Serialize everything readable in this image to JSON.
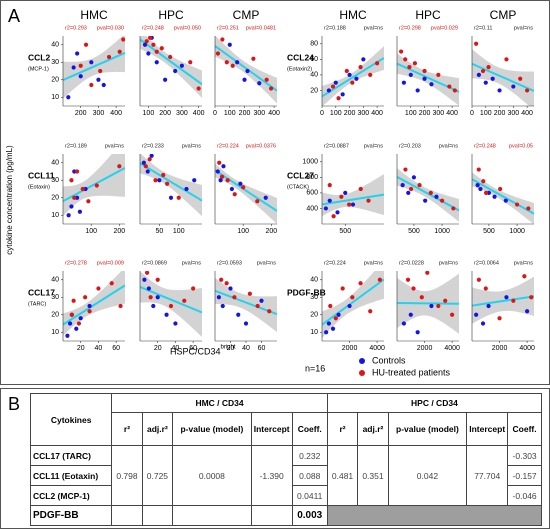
{
  "panel_labels": [
    "A",
    "B"
  ],
  "ylabel": "cytokine concentration (pg/mL)",
  "xlabel": "HSPC/CD34",
  "xlabel_sup": "bright",
  "n_note": "n=16",
  "legend": [
    {
      "name": "Controls",
      "color": "#1414e6"
    },
    {
      "name": "HU-treated patients",
      "color": "#e01414"
    }
  ],
  "chart_data": [
    {
      "type": "scatter",
      "title": "HMC",
      "ylabel": "CCL2",
      "ylabel_note": "(MCP-1)",
      "r2": "r2=0.293",
      "pval": "pval=0.030",
      "r2_color": "#e01414",
      "pval_color": "#e01414",
      "xlim": [
        100,
        450
      ],
      "xticks": [
        200,
        300,
        400
      ],
      "ylim": [
        5,
        45
      ],
      "yticks": [
        10,
        20,
        30,
        40
      ],
      "series": [
        {
          "x": [
            130,
            160,
            200,
            260,
            300,
            330,
            180
          ],
          "values": [
            10,
            27,
            22,
            30,
            20,
            17,
            35
          ]
        },
        {
          "x": [
            200,
            230,
            260,
            310,
            360,
            420,
            440
          ],
          "values": [
            28,
            40,
            17,
            25,
            33,
            36,
            43
          ]
        }
      ]
    },
    {
      "type": "scatter",
      "title": "HPC",
      "r2": "r2=0.248",
      "pval": "pval=0.050",
      "r2_color": "#e01414",
      "pval_color": "#e01414",
      "xlim": [
        50,
        420
      ],
      "xticks": [
        100,
        200,
        300,
        400
      ],
      "ylim": [
        5,
        45
      ],
      "series": [
        {
          "x": [
            80,
            100,
            120,
            150,
            200,
            260,
            300
          ],
          "values": [
            40,
            35,
            44,
            30,
            20,
            25,
            28
          ]
        },
        {
          "x": [
            90,
            110,
            130,
            150,
            180,
            230,
            350,
            400
          ],
          "values": [
            42,
            44,
            40,
            36,
            38,
            33,
            30,
            15
          ]
        }
      ]
    },
    {
      "type": "scatter",
      "title": "CMP",
      "r2": "r2=0.251",
      "pval": "pval=0.0481",
      "r2_color": "#e01414",
      "pval_color": "#e01414",
      "xlim": [
        0,
        420
      ],
      "xticks": [
        0,
        100,
        200,
        300,
        400
      ],
      "ylim": [
        5,
        45
      ],
      "series": [
        {
          "x": [
            100,
            150,
            200,
            220,
            300
          ],
          "values": [
            40,
            30,
            20,
            25,
            18
          ]
        },
        {
          "x": [
            20,
            50,
            80,
            120,
            260,
            350,
            380
          ],
          "values": [
            35,
            43,
            30,
            28,
            32,
            20,
            15
          ]
        }
      ]
    },
    {
      "type": "scatter",
      "ylabel": "CCL11",
      "ylabel_note": "(Eotaxin)",
      "r2": "r2=0.189",
      "pval": "pval=ns",
      "r2_color": "#222222",
      "pval_color": "#222222",
      "xlim": [
        0,
        220
      ],
      "xticks": [
        100,
        200
      ],
      "ylim": [
        5,
        45
      ],
      "yticks": [
        10,
        20,
        30,
        40
      ],
      "series": [
        {
          "x": [
            20,
            30,
            50,
            60,
            80,
            40
          ],
          "values": [
            10,
            15,
            20,
            12,
            25,
            35
          ]
        },
        {
          "x": [
            30,
            50,
            70,
            90,
            120,
            40,
            200
          ],
          "values": [
            30,
            35,
            25,
            18,
            27,
            20,
            38
          ]
        }
      ]
    },
    {
      "type": "scatter",
      "r2": "r2=0.233",
      "pval": "pval=ns",
      "r2_color": "#222222",
      "pval_color": "#222222",
      "xlim": [
        0,
        160
      ],
      "xticks": [
        50,
        100
      ],
      "ylim": [
        5,
        45
      ],
      "series": [
        {
          "x": [
            10,
            20,
            30,
            50,
            80,
            120,
            140
          ],
          "values": [
            40,
            35,
            44,
            30,
            20,
            25,
            30
          ]
        },
        {
          "x": [
            15,
            25,
            40,
            60,
            70,
            100
          ],
          "values": [
            38,
            42,
            30,
            33,
            28,
            20
          ]
        }
      ]
    },
    {
      "type": "scatter",
      "r2": "r2=0.224",
      "pval": "pval=0.0376",
      "r2_color": "#e01414",
      "pval_color": "#e01414",
      "xlim": [
        0,
        220
      ],
      "xticks": [
        100,
        200
      ],
      "ylim": [
        5,
        45
      ],
      "series": [
        {
          "x": [
            10,
            20,
            30,
            60,
            90,
            180
          ],
          "values": [
            35,
            30,
            38,
            25,
            28,
            20
          ]
        },
        {
          "x": [
            15,
            25,
            45,
            70,
            100,
            150
          ],
          "values": [
            40,
            32,
            30,
            22,
            26,
            18
          ]
        }
      ]
    },
    {
      "type": "scatter",
      "ylabel": "CCL17",
      "ylabel_note": "(TARC)",
      "r2": "r2=0.278",
      "pval": "pval=0.009",
      "r2_color": "#e01414",
      "pval_color": "#e01414",
      "xlim": [
        0,
        70
      ],
      "xticks": [
        20,
        40,
        60
      ],
      "ylim": [
        5,
        45
      ],
      "yticks": [
        10,
        20,
        30,
        40
      ],
      "series": [
        {
          "x": [
            5,
            8,
            10,
            15,
            20,
            30
          ],
          "values": [
            8,
            15,
            20,
            12,
            18,
            25
          ]
        },
        {
          "x": [
            10,
            12,
            18,
            25,
            30,
            40,
            55,
            65
          ],
          "values": [
            20,
            28,
            15,
            30,
            22,
            35,
            38,
            25
          ]
        }
      ]
    },
    {
      "type": "scatter",
      "r2": "r2=0.0869",
      "pval": "pval=ns",
      "r2_color": "#222222",
      "pval_color": "#222222",
      "xlim": [
        0,
        70
      ],
      "xticks": [
        20,
        40,
        60
      ],
      "ylim": [
        5,
        45
      ],
      "series": [
        {
          "x": [
            5,
            10,
            15,
            20,
            30,
            40
          ],
          "values": [
            40,
            35,
            25,
            30,
            20,
            15
          ]
        },
        {
          "x": [
            8,
            12,
            20,
            35,
            50,
            60
          ],
          "values": [
            44,
            30,
            40,
            25,
            28,
            35
          ]
        }
      ]
    },
    {
      "type": "scatter",
      "r2": "r2=0.0593",
      "pval": "pval=ns",
      "r2_color": "#222222",
      "pval_color": "#222222",
      "xlim": [
        0,
        80
      ],
      "xticks": [
        20,
        40,
        60
      ],
      "ylim": [
        5,
        45
      ],
      "series": [
        {
          "x": [
            5,
            10,
            20,
            30,
            40,
            60
          ],
          "values": [
            30,
            25,
            35,
            20,
            15,
            28
          ]
        },
        {
          "x": [
            8,
            15,
            25,
            45,
            55,
            70
          ],
          "values": [
            40,
            38,
            30,
            32,
            25,
            22
          ]
        }
      ]
    },
    {
      "type": "scatter",
      "title": "HMC",
      "ylabel": "CCL24",
      "ylabel_note": "(Eotaxin2)",
      "r2": "r2=0.188",
      "pval": "pval=ns",
      "r2_color": "#222222",
      "pval_color": "#222222",
      "xlim": [
        0,
        450
      ],
      "xticks": [
        0,
        100,
        200,
        300,
        400
      ],
      "ylim": [
        0,
        90
      ],
      "yticks": [
        20,
        40,
        60,
        80
      ],
      "series": [
        {
          "x": [
            50,
            100,
            150,
            200,
            250,
            300
          ],
          "values": [
            20,
            30,
            15,
            40,
            35,
            60
          ]
        },
        {
          "x": [
            80,
            120,
            180,
            220,
            280,
            350,
            400
          ],
          "values": [
            25,
            10,
            45,
            30,
            50,
            40,
            55
          ]
        }
      ]
    },
    {
      "type": "scatter",
      "title": "HPC",
      "r2": "r2=0.298",
      "pval": "pval=0.029",
      "r2_color": "#e01414",
      "pval_color": "#e01414",
      "xlim": [
        0,
        450
      ],
      "xticks": [
        100,
        200,
        300,
        400
      ],
      "ylim": [
        0,
        90
      ],
      "series": [
        {
          "x": [
            50,
            100,
            150,
            200,
            250
          ],
          "values": [
            30,
            40,
            20,
            35,
            28
          ]
        },
        {
          "x": [
            30,
            60,
            90,
            130,
            200,
            300,
            380,
            420
          ],
          "values": [
            70,
            60,
            50,
            55,
            45,
            40,
            25,
            20
          ]
        }
      ]
    },
    {
      "type": "scatter",
      "title": "CMP",
      "r2": "r2=0.11",
      "pval": "pval=ns",
      "r2_color": "#222222",
      "pval_color": "#222222",
      "xlim": [
        0,
        450
      ],
      "xticks": [
        0,
        100,
        200,
        300,
        400
      ],
      "ylim": [
        0,
        90
      ],
      "series": [
        {
          "x": [
            50,
            100,
            150,
            200,
            300
          ],
          "values": [
            40,
            30,
            35,
            20,
            25
          ]
        },
        {
          "x": [
            30,
            80,
            120,
            250,
            350,
            400
          ],
          "values": [
            80,
            45,
            50,
            60,
            35,
            20
          ]
        }
      ]
    },
    {
      "type": "scatter",
      "ylabel": "CCL27",
      "ylabel_note": "(CTACK)",
      "r2": "r2=0.0887",
      "pval": "pval=ns",
      "r2_color": "#222222",
      "pval_color": "#222222",
      "xlim": [
        200,
        1000
      ],
      "xticks": [
        500
      ],
      "ylim": [
        200,
        1100
      ],
      "yticks": [
        400,
        600,
        800,
        1000
      ],
      "series": [
        {
          "x": [
            250,
            300,
            400,
            500,
            600
          ],
          "values": [
            400,
            500,
            350,
            600,
            450
          ]
        },
        {
          "x": [
            300,
            350,
            450,
            550,
            700,
            800
          ],
          "values": [
            700,
            300,
            550,
            450,
            650,
            500
          ]
        }
      ]
    },
    {
      "type": "scatter",
      "r2": "r2=0.203",
      "pval": "pval=ns",
      "r2_color": "#222222",
      "pval_color": "#222222",
      "xlim": [
        200,
        1300
      ],
      "xticks": [
        500,
        1000
      ],
      "ylim": [
        200,
        1100
      ],
      "series": [
        {
          "x": [
            300,
            400,
            500,
            700,
            900
          ],
          "values": [
            700,
            600,
            800,
            500,
            550
          ]
        },
        {
          "x": [
            350,
            450,
            600,
            800,
            1000,
            1200
          ],
          "values": [
            900,
            650,
            700,
            600,
            500,
            400
          ]
        }
      ]
    },
    {
      "type": "scatter",
      "r2": "r2=0.248",
      "pval": "pval=0.05",
      "r2_color": "#e01414",
      "pval_color": "#e01414",
      "xlim": [
        200,
        1300
      ],
      "xticks": [
        500,
        1000
      ],
      "ylim": [
        200,
        1100
      ],
      "series": [
        {
          "x": [
            300,
            350,
            500,
            600,
            800
          ],
          "values": [
            700,
            650,
            600,
            550,
            500
          ]
        },
        {
          "x": [
            320,
            400,
            450,
            700,
            1000,
            1200
          ],
          "values": [
            900,
            750,
            600,
            650,
            450,
            400
          ]
        }
      ]
    },
    {
      "type": "scatter",
      "ylabel": "PDGF-BB",
      "r2": "r2=0.224",
      "pval": "pval=ns",
      "r2_color": "#222222",
      "pval_color": "#222222",
      "xlim": [
        0,
        4500
      ],
      "xticks": [
        2000,
        4000
      ],
      "ylim": [
        5,
        45
      ],
      "yticks": [
        10,
        20,
        30,
        40
      ],
      "series": [
        {
          "x": [
            300,
            500,
            800,
            1200,
            2000
          ],
          "values": [
            10,
            15,
            12,
            20,
            25
          ]
        },
        {
          "x": [
            600,
            1000,
            1500,
            2200,
            2800,
            3500,
            4200
          ],
          "values": [
            25,
            18,
            35,
            30,
            38,
            22,
            40
          ]
        }
      ]
    },
    {
      "type": "scatter",
      "r2": "r2=0.0228",
      "pval": "pval=ns",
      "r2_color": "#222222",
      "pval_color": "#222222",
      "xlim": [
        0,
        4500
      ],
      "xticks": [
        2000,
        4000
      ],
      "ylim": [
        5,
        45
      ],
      "series": [
        {
          "x": [
            500,
            1000,
            1500,
            2500
          ],
          "values": [
            15,
            20,
            10,
            25
          ]
        },
        {
          "x": [
            800,
            1200,
            1800,
            2200,
            3000,
            3500,
            4000
          ],
          "values": [
            40,
            35,
            30,
            44,
            25,
            28,
            20
          ]
        }
      ]
    },
    {
      "type": "scatter",
      "r2": "r2=0.0064",
      "pval": "pval=ns",
      "r2_color": "#222222",
      "pval_color": "#222222",
      "xlim": [
        0,
        4500
      ],
      "xticks": [
        2000,
        4000
      ],
      "ylim": [
        5,
        45
      ],
      "series": [
        {
          "x": [
            300,
            800,
            1200,
            2500,
            4000
          ],
          "values": [
            20,
            15,
            25,
            30,
            22
          ]
        },
        {
          "x": [
            500,
            1000,
            2000,
            3000,
            3800,
            4300
          ],
          "values": [
            40,
            35,
            18,
            28,
            42,
            30
          ]
        }
      ]
    }
  ],
  "table": {
    "corner": "Cytokines",
    "groups": [
      "HMC / CD34",
      "HPC / CD34"
    ],
    "columns": [
      "r²",
      "adj.r²",
      "p-value (model)",
      "Intercept",
      "Coeff."
    ],
    "hmc_model": [
      "0.798",
      "0.725",
      "0.0008",
      "-1.390"
    ],
    "hpc_model": [
      "0.481",
      "0.351",
      "0.042",
      "77.704"
    ],
    "rows": [
      {
        "name": "CCL17 (TARC)",
        "hmc_coeff": "0.232",
        "hpc_coeff": "-0.303"
      },
      {
        "name": "CCL11 (Eotaxin)",
        "hmc_coeff": "0.088",
        "hpc_coeff": "-0.157"
      },
      {
        "name": "CCL2 (MCP-1)",
        "hmc_coeff": "0.0411",
        "hpc_coeff": "-0.046"
      },
      {
        "name": "PDGF-BB",
        "hmc_coeff": "0.003"
      }
    ]
  }
}
